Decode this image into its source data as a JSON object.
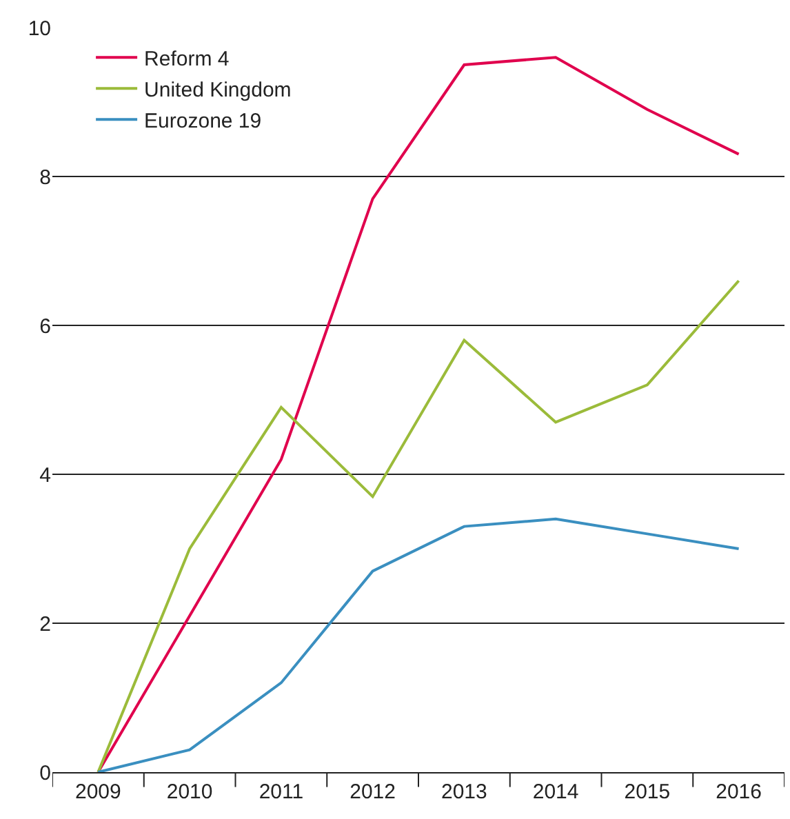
{
  "chart_data": {
    "type": "line",
    "categories": [
      "2009",
      "2010",
      "2011",
      "2012",
      "2013",
      "2014",
      "2015",
      "2016"
    ],
    "series": [
      {
        "name": "Reform 4",
        "color": "#e0004d",
        "values": [
          0,
          2.1,
          4.2,
          7.7,
          9.5,
          9.6,
          8.9,
          8.3
        ]
      },
      {
        "name": "United Kingdom",
        "color": "#9bbb3a",
        "values": [
          0,
          3.0,
          4.9,
          3.7,
          5.8,
          4.7,
          5.2,
          6.6
        ]
      },
      {
        "name": "Eurozone 19",
        "color": "#3a8fc0",
        "values": [
          0,
          0.3,
          1.2,
          2.7,
          3.3,
          3.4,
          3.2,
          3.0
        ]
      }
    ],
    "ylim": [
      0,
      10
    ],
    "yticks": [
      0,
      2,
      4,
      6,
      8,
      10
    ],
    "grid": "y",
    "legend": "top left",
    "marker": "none",
    "line_style": "solid"
  }
}
